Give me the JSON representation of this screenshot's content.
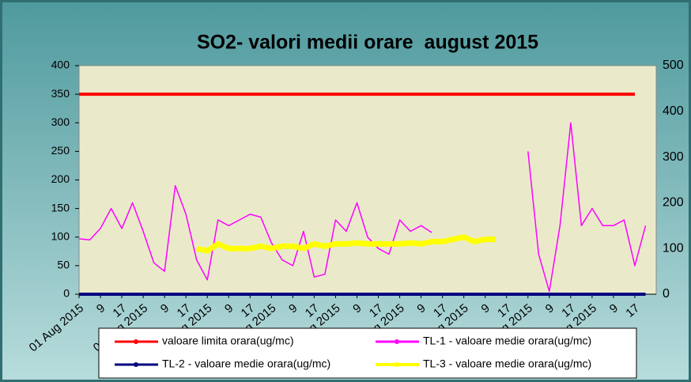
{
  "chart_data": {
    "type": "line",
    "title": "SO2- valori medii orare  august 2015",
    "categories": [
      "01 Aug 2015",
      null,
      "9",
      null,
      "17",
      null,
      "02 Aug 2015",
      null,
      "9",
      null,
      "17",
      null,
      "03 Aug 2015",
      null,
      "9",
      null,
      "17",
      null,
      "04 Aug 2015",
      null,
      "9",
      null,
      "17",
      null,
      "05 Aug 2015",
      null,
      "9",
      null,
      "17",
      null,
      "06 Aug 2015",
      null,
      "9",
      null,
      "17",
      null,
      "07 Aug 2015",
      null,
      "9",
      null,
      "17",
      null,
      "08 Aug 2015",
      null,
      "9",
      null,
      "17",
      null,
      "09 Aug 2015",
      null,
      "9",
      null,
      "17",
      null
    ],
    "series": [
      {
        "name": "valoare limita orara(ug/mc)",
        "color": "#ff0000",
        "values": [
          350,
          350,
          350,
          350,
          350,
          350,
          350,
          350,
          350,
          350,
          350,
          350,
          350,
          350,
          350,
          350,
          350,
          350,
          350,
          350,
          350,
          350,
          350,
          350,
          350,
          350,
          350,
          350,
          350,
          350,
          350,
          350,
          350,
          350,
          350,
          350,
          350,
          350,
          350,
          350,
          350,
          350,
          350,
          350,
          350,
          350,
          350,
          350,
          350,
          350,
          350,
          350,
          350,
          null
        ]
      },
      {
        "name": "TL-1 - valoare medie orara(ug/mc)",
        "color": "#ff00ff",
        "values": [
          97,
          95,
          115,
          150,
          115,
          160,
          110,
          55,
          40,
          190,
          140,
          60,
          25,
          130,
          120,
          130,
          140,
          135,
          90,
          60,
          50,
          110,
          30,
          35,
          130,
          110,
          160,
          100,
          80,
          70,
          130,
          110,
          120,
          108,
          null,
          null,
          null,
          null,
          null,
          null,
          null,
          null,
          250,
          70,
          5,
          120,
          300,
          120,
          150,
          120,
          120,
          130,
          50,
          120
        ]
      },
      {
        "name": "TL-2 - valoare medie orara(ug/mc)",
        "color": "#000080",
        "values": [
          0,
          0,
          0,
          0,
          0,
          0,
          0,
          0,
          0,
          0,
          0,
          0,
          0,
          0,
          0,
          0,
          0,
          0,
          0,
          0,
          0,
          0,
          0,
          0,
          0,
          0,
          0,
          0,
          0,
          0,
          0,
          0,
          0,
          0,
          0,
          0,
          0,
          0,
          0,
          0,
          0,
          0,
          0,
          0,
          0,
          0,
          0,
          0,
          0,
          0,
          0,
          0,
          0,
          0
        ]
      },
      {
        "name": "TL-3 - valoare medie orara(ug/mc)",
        "color": "#ffff00",
        "axis": "y2",
        "values": [
          null,
          null,
          null,
          null,
          null,
          null,
          null,
          null,
          null,
          null,
          null,
          100,
          95,
          110,
          100,
          100,
          100,
          105,
          100,
          105,
          105,
          100,
          110,
          105,
          110,
          110,
          112,
          110,
          110,
          110,
          110,
          112,
          110,
          115,
          115,
          120,
          125,
          115,
          120,
          120,
          null,
          null,
          null,
          null,
          null,
          null,
          null,
          null,
          null,
          null,
          null,
          null,
          null,
          null
        ]
      }
    ],
    "ylim": [
      0,
      400
    ],
    "yticks": [
      0,
      50,
      100,
      150,
      200,
      250,
      300,
      350,
      400
    ],
    "y2lim": [
      0,
      500
    ],
    "y2ticks": [
      0,
      100,
      200,
      300,
      400,
      500
    ],
    "legend": "bottom"
  }
}
